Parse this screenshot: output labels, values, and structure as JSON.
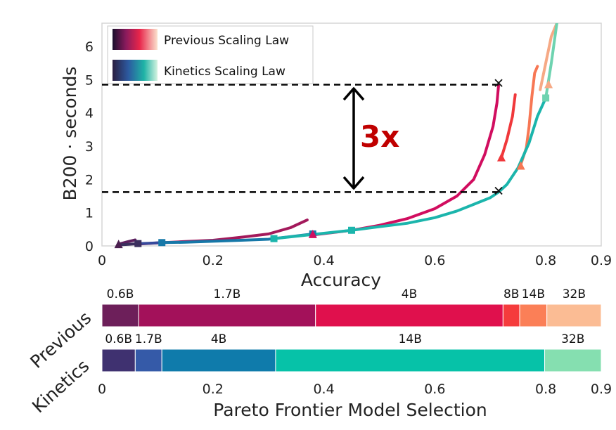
{
  "chart_data": [
    {
      "type": "line",
      "xlabel": "Accuracy",
      "ylabel": "B200 · seconds",
      "xlim": [
        0,
        0.9
      ],
      "ylim": [
        0,
        6.7
      ],
      "xticks": [
        "0",
        "0.2",
        "0.4",
        "0.6",
        "0.8",
        "0.9"
      ],
      "xtick_values": [
        0,
        0.2,
        0.4,
        0.6,
        0.8,
        0.9
      ],
      "yticks": [
        "0",
        "1",
        "2",
        "3",
        "4",
        "5",
        "6"
      ],
      "ytick_values": [
        0,
        1,
        2,
        3,
        4,
        5,
        6
      ],
      "legend_position": "top-left",
      "legend": [
        "Previous Scaling Law",
        "Kinetics Scaling Law"
      ],
      "annotation": {
        "text": "3x",
        "upper_y": 4.85,
        "lower_y": 1.62
      },
      "series": [
        {
          "name": "Previous 0.6B",
          "family": "previous",
          "color": "#5c1f5e",
          "points": [
            [
              0.03,
              0.05
            ],
            [
              0.045,
              0.12
            ],
            [
              0.06,
              0.18
            ]
          ]
        },
        {
          "name": "Previous 1.7B",
          "family": "previous",
          "color": "#a3195b",
          "points": [
            [
              0.06,
              0.05
            ],
            [
              0.1,
              0.09
            ],
            [
              0.15,
              0.13
            ],
            [
              0.2,
              0.17
            ],
            [
              0.25,
              0.26
            ],
            [
              0.3,
              0.36
            ],
            [
              0.34,
              0.55
            ],
            [
              0.37,
              0.78
            ]
          ]
        },
        {
          "name": "Previous 4B",
          "family": "previous",
          "color": "#d10d5f",
          "points": [
            [
              0.38,
              0.33
            ],
            [
              0.45,
              0.47
            ],
            [
              0.5,
              0.62
            ],
            [
              0.55,
              0.82
            ],
            [
              0.6,
              1.12
            ],
            [
              0.64,
              1.5
            ],
            [
              0.67,
              2.0
            ],
            [
              0.69,
              2.75
            ],
            [
              0.705,
              3.6
            ],
            [
              0.712,
              4.3
            ],
            [
              0.715,
              4.85
            ]
          ]
        },
        {
          "name": "Previous 8B",
          "family": "previous",
          "color": "#f0383b",
          "points": [
            [
              0.72,
              2.65
            ],
            [
              0.73,
              3.2
            ],
            [
              0.74,
              3.9
            ],
            [
              0.745,
              4.55
            ]
          ]
        },
        {
          "name": "Previous 14B",
          "family": "previous",
          "color": "#f77754",
          "points": [
            [
              0.755,
              2.45
            ],
            [
              0.765,
              2.95
            ],
            [
              0.77,
              3.6
            ],
            [
              0.775,
              4.5
            ],
            [
              0.78,
              5.2
            ],
            [
              0.785,
              5.4
            ]
          ]
        },
        {
          "name": "Previous 32B",
          "family": "previous",
          "color": "#f6a985",
          "points": [
            [
              0.79,
              4.7
            ],
            [
              0.8,
              5.5
            ],
            [
              0.81,
              6.3
            ],
            [
              0.82,
              6.7
            ]
          ]
        },
        {
          "name": "Kinetics 0.6B",
          "family": "kinetics",
          "color": "#3b2f5e",
          "points": [
            [
              0.03,
              0.03
            ],
            [
              0.05,
              0.05
            ],
            [
              0.065,
              0.07
            ]
          ]
        },
        {
          "name": "Kinetics 1.7B",
          "family": "kinetics",
          "color": "#354a9c",
          "points": [
            [
              0.065,
              0.07
            ],
            [
              0.085,
              0.08
            ],
            [
              0.108,
              0.1
            ]
          ]
        },
        {
          "name": "Kinetics 4B",
          "family": "kinetics",
          "color": "#1678a8",
          "points": [
            [
              0.108,
              0.1
            ],
            [
              0.15,
              0.11
            ],
            [
              0.2,
              0.14
            ],
            [
              0.25,
              0.17
            ],
            [
              0.3,
              0.2
            ],
            [
              0.35,
              0.3
            ],
            [
              0.38,
              0.36
            ]
          ]
        },
        {
          "name": "Kinetics 14B",
          "family": "kinetics",
          "color": "#1bb5ac",
          "points": [
            [
              0.31,
              0.22
            ],
            [
              0.4,
              0.38
            ],
            [
              0.45,
              0.47
            ],
            [
              0.5,
              0.58
            ],
            [
              0.55,
              0.68
            ],
            [
              0.6,
              0.85
            ],
            [
              0.64,
              1.05
            ],
            [
              0.67,
              1.25
            ],
            [
              0.7,
              1.45
            ],
            [
              0.715,
              1.62
            ],
            [
              0.73,
              1.85
            ],
            [
              0.75,
              2.35
            ],
            [
              0.77,
              3.1
            ],
            [
              0.785,
              3.9
            ],
            [
              0.8,
              4.45
            ]
          ]
        },
        {
          "name": "Kinetics 32B",
          "family": "kinetics",
          "color": "#6ed3b0",
          "points": [
            [
              0.8,
              4.45
            ],
            [
              0.81,
              5.5
            ],
            [
              0.82,
              6.7
            ]
          ]
        }
      ],
      "markers": [
        {
          "shape": "triangle",
          "color": "#4b1f50",
          "x": 0.03,
          "y": 0.04
        },
        {
          "shape": "square",
          "color": "#3b2f5e",
          "x": 0.065,
          "y": 0.07
        },
        {
          "shape": "square",
          "color": "#1678a8",
          "x": 0.108,
          "y": 0.1
        },
        {
          "shape": "square",
          "color": "#1bb5ac",
          "x": 0.31,
          "y": 0.22
        },
        {
          "shape": "square",
          "color": "#1678a8",
          "x": 0.38,
          "y": 0.36
        },
        {
          "shape": "triangle",
          "color": "#d10d5f",
          "x": 0.38,
          "y": 0.34
        },
        {
          "shape": "square",
          "color": "#1bb5ac",
          "x": 0.45,
          "y": 0.47
        },
        {
          "shape": "triangle",
          "color": "#f0383b",
          "x": 0.72,
          "y": 2.65
        },
        {
          "shape": "triangle",
          "color": "#f77754",
          "x": 0.755,
          "y": 2.4
        },
        {
          "shape": "square",
          "color": "#6ed3b0",
          "x": 0.8,
          "y": 4.45
        },
        {
          "shape": "triangle",
          "color": "#f6a985",
          "x": 0.805,
          "y": 4.85
        },
        {
          "shape": "cross",
          "color": "#111111",
          "x": 0.715,
          "y": 4.9
        },
        {
          "shape": "cross",
          "color": "#111111",
          "x": 0.715,
          "y": 1.66
        }
      ]
    },
    {
      "type": "bar",
      "orientation": "horizontal-stacked",
      "xlabel": "Pareto Frontier Model Selection",
      "xlim": [
        0,
        0.9
      ],
      "xticks": [
        "0",
        "0.2",
        "0.4",
        "0.6",
        "0.8",
        "0.9"
      ],
      "xtick_values": [
        0,
        0.2,
        0.4,
        0.6,
        0.8,
        0.9
      ],
      "rows": [
        {
          "label": "Previous",
          "segments": [
            {
              "label": "0.6B",
              "start": 0.0,
              "end": 0.066,
              "color": "#6d1f5a"
            },
            {
              "label": "1.7B",
              "start": 0.066,
              "end": 0.385,
              "color": "#a3115a"
            },
            {
              "label": "4B",
              "start": 0.385,
              "end": 0.723,
              "color": "#e0104d"
            },
            {
              "label": "8B",
              "start": 0.723,
              "end": 0.753,
              "color": "#f53b3c"
            },
            {
              "label": "14B",
              "start": 0.753,
              "end": 0.802,
              "color": "#fb7f57"
            },
            {
              "label": "32B",
              "start": 0.802,
              "end": 0.9,
              "color": "#fbbc94"
            }
          ]
        },
        {
          "label": "Kinetics",
          "segments": [
            {
              "label": "0.6B",
              "start": 0.0,
              "end": 0.06,
              "color": "#3f3170"
            },
            {
              "label": "1.7B",
              "start": 0.06,
              "end": 0.108,
              "color": "#355aa8"
            },
            {
              "label": "4B",
              "start": 0.108,
              "end": 0.313,
              "color": "#0f7bab"
            },
            {
              "label": "14B",
              "start": 0.313,
              "end": 0.798,
              "color": "#06c2a8"
            },
            {
              "label": "32B",
              "start": 0.798,
              "end": 0.9,
              "color": "#85dfb0"
            }
          ]
        }
      ]
    }
  ]
}
